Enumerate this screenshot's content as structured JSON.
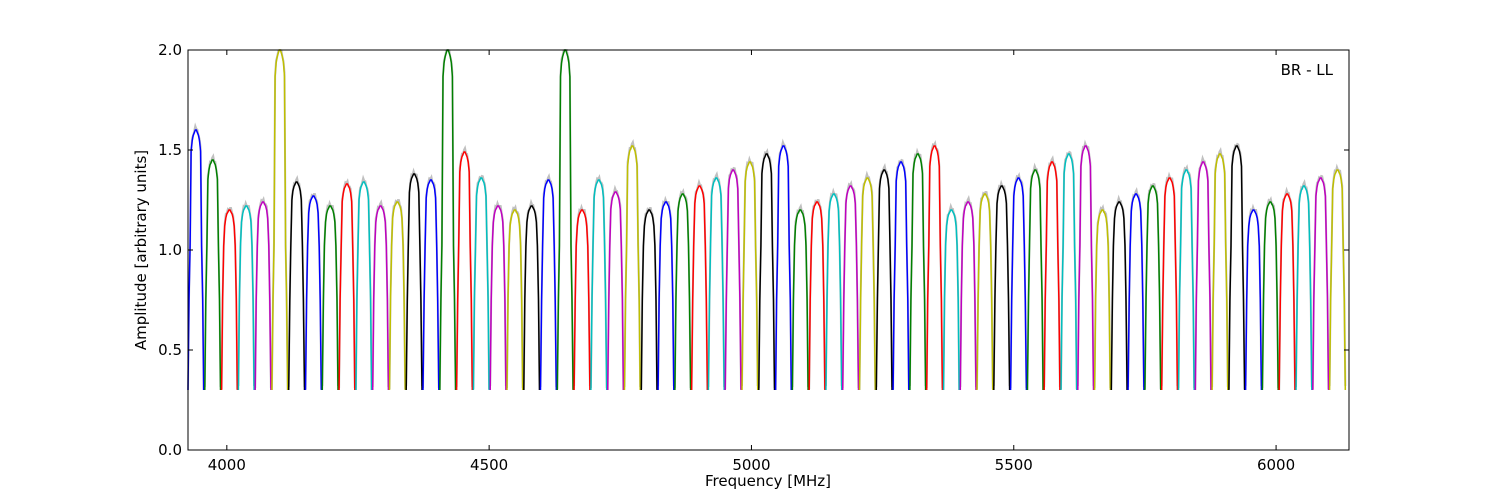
{
  "chart_data": {
    "type": "line",
    "title": "",
    "xlabel": "Frequency [MHz]",
    "ylabel": "Amplitude [arbitrary units]",
    "xlim": [
      3926,
      4750
    ],
    "xlim_full": [
      3926,
      6139
    ],
    "ylim": [
      0.0,
      2.0
    ],
    "grid": false,
    "legend": "none",
    "annotation": "BR - LL",
    "x_ticks": [
      4000,
      4500,
      5000,
      5500,
      6000
    ],
    "x_tick_labels": [
      "4000",
      "4500",
      "5000",
      "5500",
      "6000"
    ],
    "y_ticks": [
      0.0,
      0.5,
      1.0,
      1.5,
      2.0
    ],
    "y_tick_labels": [
      "0.0",
      "0.5",
      "1.0",
      "1.5",
      "2.0"
    ],
    "colors": [
      "#0000ff",
      "#008000",
      "#ff0000",
      "#00bfbf",
      "#bf00bf",
      "#bfbf00",
      "#000000"
    ],
    "background_color": "#c0c0c0",
    "channel_width_mhz": 32,
    "channel_start_mhz": 3926,
    "channel_count": 69,
    "channel_shape": {
      "x_offset_mhz": [
        0,
        2,
        4,
        6,
        8,
        10,
        12,
        14,
        16,
        18,
        20,
        22,
        24,
        26,
        28,
        30
      ],
      "amplitude": [
        0.3,
        0.75,
        1.02,
        1.12,
        1.16,
        1.18,
        1.19,
        1.2,
        1.2,
        1.19,
        1.18,
        1.16,
        1.12,
        1.02,
        0.75,
        0.3
      ]
    },
    "series": [
      {
        "x_start": 3926,
        "peak": 1.6
      },
      {
        "x_start": 3958,
        "peak": 1.45
      },
      {
        "x_start": 3990,
        "peak": 1.2
      },
      {
        "x_start": 4022,
        "peak": 1.22
      },
      {
        "x_start": 4054,
        "peak": 1.24
      },
      {
        "x_start": 4086,
        "peak": 2.0
      },
      {
        "x_start": 4118,
        "peak": 1.34
      },
      {
        "x_start": 4150,
        "peak": 1.27
      },
      {
        "x_start": 4182,
        "peak": 1.22
      },
      {
        "x_start": 4214,
        "peak": 1.33
      },
      {
        "x_start": 4246,
        "peak": 1.34
      },
      {
        "x_start": 4278,
        "peak": 1.22
      },
      {
        "x_start": 4310,
        "peak": 1.24
      },
      {
        "x_start": 4342,
        "peak": 1.38
      },
      {
        "x_start": 4374,
        "peak": 1.35
      },
      {
        "x_start": 4406,
        "peak": 2.0
      },
      {
        "x_start": 4438,
        "peak": 1.49
      },
      {
        "x_start": 4470,
        "peak": 1.36
      },
      {
        "x_start": 4502,
        "peak": 1.22
      },
      {
        "x_start": 4534,
        "peak": 1.2
      },
      {
        "x_start": 4566,
        "peak": 1.22
      },
      {
        "x_start": 4598,
        "peak": 1.35
      },
      {
        "x_start": 4630,
        "peak": 2.0
      },
      {
        "x_start": 4662,
        "peak": 1.2
      },
      {
        "x_start": 4694,
        "peak": 1.35
      },
      {
        "x_start": 4726,
        "peak": 1.29
      }
    ]
  }
}
